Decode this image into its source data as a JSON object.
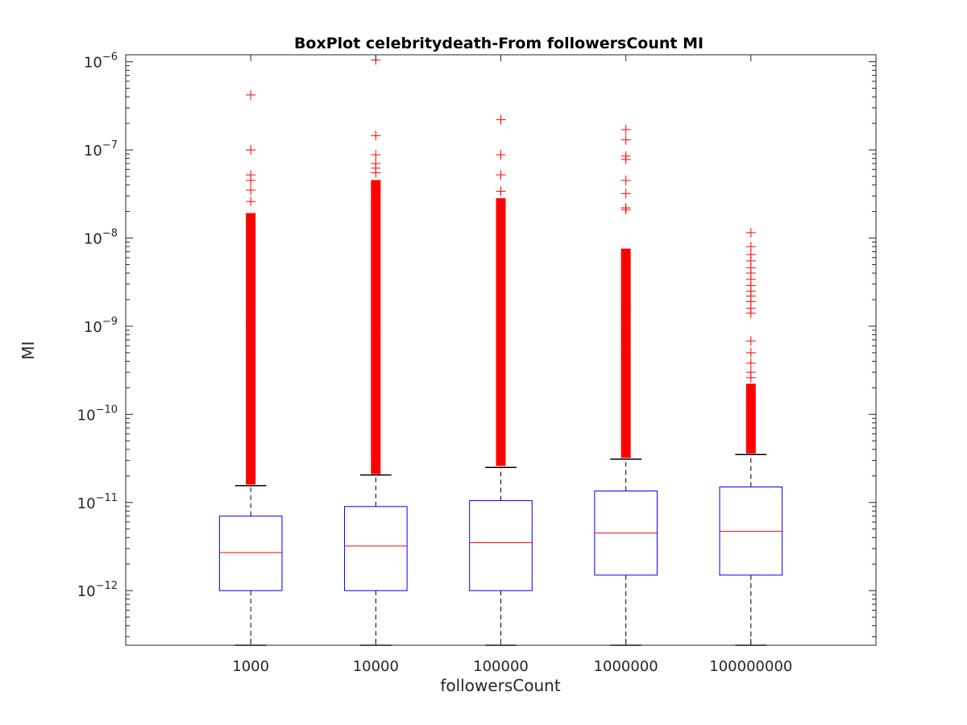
{
  "chart_data": {
    "type": "box",
    "title": "BoxPlot celebritydeath-From followersCount MI",
    "xlabel": "followersCount",
    "ylabel": "MI",
    "y_scale": "log",
    "ylim": [
      2.4e-13,
      1.2e-06
    ],
    "y_ticks": [
      {
        "value": 1e-12,
        "base": "10",
        "exp": "−12"
      },
      {
        "value": 1e-11,
        "base": "10",
        "exp": "−11"
      },
      {
        "value": 1e-10,
        "base": "10",
        "exp": "−10"
      },
      {
        "value": 1e-09,
        "base": "10",
        "exp": "−9"
      },
      {
        "value": 1e-08,
        "base": "10",
        "exp": "−8"
      },
      {
        "value": 1e-07,
        "base": "10",
        "exp": "−7"
      },
      {
        "value": 1e-06,
        "base": "10",
        "exp": "−6"
      }
    ],
    "categories": [
      "1000",
      "10000",
      "100000",
      "1000000",
      "100000000"
    ],
    "boxes": [
      {
        "whisker_low": 2.4e-13,
        "q1": 1e-12,
        "median": 2.7e-12,
        "q3": 7e-12,
        "whisker_high": 1.55e-11,
        "dense_outlier_range": [
          1.6e-11,
          1.9e-08
        ],
        "outliers": [
          4.2e-07,
          1e-07,
          5.2e-08,
          4.5e-08,
          3.5e-08,
          2.6e-08,
          1.3e-09,
          1.1e-09,
          9.5e-10,
          7.5e-10,
          5.5e-10
        ]
      },
      {
        "whisker_low": 2.4e-13,
        "q1": 1e-12,
        "median": 3.2e-12,
        "q3": 9e-12,
        "whisker_high": 2.05e-11,
        "dense_outlier_range": [
          2.1e-11,
          4.5e-08
        ],
        "outliers": [
          1.05e-06,
          1.45e-07,
          8.8e-08,
          7e-08,
          6.2e-08,
          5.5e-08,
          7.5e-10
        ]
      },
      {
        "whisker_low": 2.4e-13,
        "q1": 1e-12,
        "median": 3.5e-12,
        "q3": 1.05e-11,
        "whisker_high": 2.5e-11,
        "dense_outlier_range": [
          2.6e-11,
          2.8e-08
        ],
        "outliers": [
          2.2e-07,
          8.8e-08,
          5.2e-08,
          3.4e-08,
          1.5e-08,
          9.5e-10,
          6.5e-10,
          5.5e-10
        ]
      },
      {
        "whisker_low": 2.4e-13,
        "q1": 1.5e-12,
        "median": 4.5e-12,
        "q3": 1.35e-11,
        "whisker_high": 3.1e-11,
        "dense_outlier_range": [
          3.2e-11,
          7.5e-09
        ],
        "outliers": [
          1.7e-07,
          1.3e-07,
          8.5e-08,
          7.8e-08,
          4.5e-08,
          3.2e-08,
          2.2e-08,
          2.1e-08,
          1.6e-09,
          1.2e-09,
          9e-10,
          6.5e-10,
          5e-10
        ]
      },
      {
        "whisker_low": 2.4e-13,
        "q1": 1.5e-12,
        "median": 4.7e-12,
        "q3": 1.5e-11,
        "whisker_high": 3.5e-11,
        "dense_outlier_range": [
          3.6e-11,
          2.2e-10
        ],
        "outliers": [
          1.15e-08,
          8e-09,
          6.5e-09,
          5.5e-09,
          4.6e-09,
          4e-09,
          3.4e-09,
          2.9e-09,
          2.5e-09,
          2.2e-09,
          1.9e-09,
          1.6e-09,
          1.4e-09,
          6.8e-10,
          5e-10,
          3.8e-10,
          3e-10,
          2.6e-10
        ]
      }
    ],
    "colors": {
      "box": "#0000ff",
      "median": "#ff0000",
      "outlier": "#ff0000",
      "whisker": "#000000",
      "axes": "#262626"
    },
    "grid": false
  }
}
